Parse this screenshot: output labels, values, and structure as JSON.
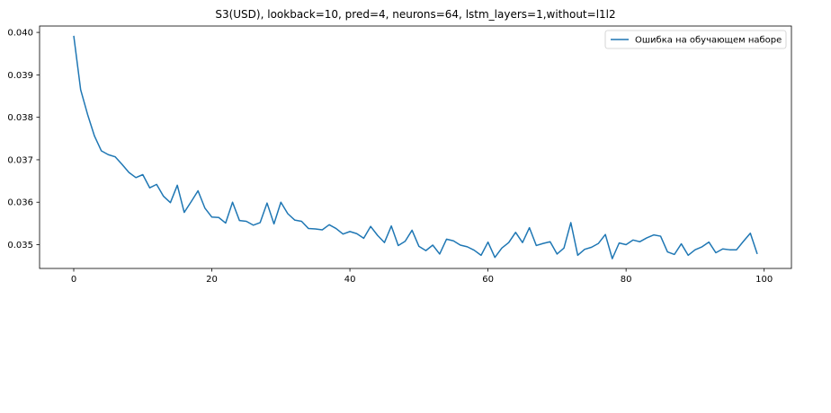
{
  "chart_data": {
    "type": "line",
    "title": "S3(USD), lookback=10, pred=4, neurons=64, lstm_layers=1,without=l1l2",
    "xlabel": "",
    "ylabel": "",
    "xlim": [
      -4.95,
      103.95
    ],
    "ylim": [
      0.03444,
      0.04015
    ],
    "xticks": [
      0,
      20,
      40,
      60,
      80,
      100
    ],
    "xtick_labels": [
      "0",
      "20",
      "40",
      "60",
      "80",
      "100"
    ],
    "yticks": [
      0.035,
      0.036,
      0.037,
      0.038,
      0.039,
      0.04
    ],
    "ytick_labels": [
      "0.035",
      "0.036",
      "0.037",
      "0.038",
      "0.039",
      "0.040"
    ],
    "grid": false,
    "legend_position": "top-right",
    "series": [
      {
        "name": "Ошибка на обучающем наборе",
        "color": "#1f77b4",
        "x": [
          0,
          1,
          2,
          3,
          4,
          5,
          6,
          7,
          8,
          9,
          10,
          11,
          12,
          13,
          14,
          15,
          16,
          17,
          18,
          19,
          20,
          21,
          22,
          23,
          24,
          25,
          26,
          27,
          28,
          29,
          30,
          31,
          32,
          33,
          34,
          35,
          36,
          37,
          38,
          39,
          40,
          41,
          42,
          43,
          44,
          45,
          46,
          47,
          48,
          49,
          50,
          51,
          52,
          53,
          54,
          55,
          56,
          57,
          58,
          59,
          60,
          61,
          62,
          63,
          64,
          65,
          66,
          67,
          68,
          69,
          70,
          71,
          72,
          73,
          74,
          75,
          76,
          77,
          78,
          79,
          80,
          81,
          82,
          83,
          84,
          85,
          86,
          87,
          88,
          89,
          90,
          91,
          92,
          93,
          94,
          95,
          96,
          97,
          98,
          99
        ],
        "values": [
          0.03992,
          0.03865,
          0.03807,
          0.03756,
          0.03721,
          0.03712,
          0.03707,
          0.03689,
          0.0367,
          0.03658,
          0.03665,
          0.03634,
          0.03642,
          0.03614,
          0.03599,
          0.0364,
          0.03576,
          0.03601,
          0.03627,
          0.03586,
          0.03565,
          0.03564,
          0.03551,
          0.036,
          0.03557,
          0.03555,
          0.03546,
          0.03552,
          0.03598,
          0.03549,
          0.036,
          0.03573,
          0.03558,
          0.03555,
          0.03538,
          0.03537,
          0.03535,
          0.03547,
          0.03538,
          0.03525,
          0.03531,
          0.03526,
          0.03515,
          0.03543,
          0.03522,
          0.03505,
          0.03544,
          0.03498,
          0.03508,
          0.03534,
          0.03496,
          0.03486,
          0.03499,
          0.03478,
          0.03513,
          0.03509,
          0.03499,
          0.03495,
          0.03487,
          0.03475,
          0.03506,
          0.0347,
          0.03492,
          0.03505,
          0.03529,
          0.03505,
          0.0354,
          0.03498,
          0.03503,
          0.03507,
          0.03478,
          0.03492,
          0.03552,
          0.03475,
          0.03489,
          0.03494,
          0.03503,
          0.03524,
          0.03467,
          0.03504,
          0.035,
          0.03511,
          0.03507,
          0.03516,
          0.03523,
          0.0352,
          0.03483,
          0.03477,
          0.03502,
          0.03475,
          0.03488,
          0.03495,
          0.03506,
          0.03481,
          0.0349,
          0.03488,
          0.03488,
          0.03508,
          0.03527,
          0.03478
        ]
      }
    ]
  }
}
